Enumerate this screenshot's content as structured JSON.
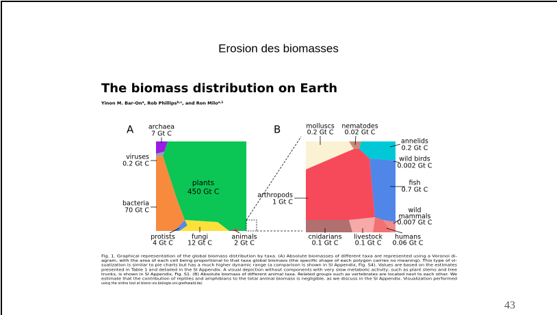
{
  "slide_title": "Erosion des biomasses",
  "paper": {
    "title": "The biomass distribution on Earth",
    "authors": [
      {
        "text": "Yinon M. Bar-On",
        "sup": "a"
      },
      {
        "text": ", Rob Phillips",
        "sup": "b,c"
      },
      {
        "text": ", and Ron Milo",
        "sup": "a,1"
      }
    ]
  },
  "figure": {
    "panel_a": {
      "label": "A",
      "cells": [
        {
          "name": "archaea",
          "value": "7 Gt C"
        },
        {
          "name": "viruses",
          "value": "0.2 Gt C"
        },
        {
          "name": "plants",
          "value": "450 Gt C"
        },
        {
          "name": "bacteria",
          "value": "70 Gt C"
        },
        {
          "name": "protists",
          "value": "4 Gt C"
        },
        {
          "name": "fungi",
          "value": "12 Gt C"
        },
        {
          "name": "animals",
          "value": "2 Gt C"
        }
      ]
    },
    "panel_b": {
      "label": "B",
      "cells": [
        {
          "name": "molluscs",
          "value": "0.2 Gt C"
        },
        {
          "name": "nematodes",
          "value": "0.02 Gt C"
        },
        {
          "name": "annelids",
          "value": "0.2 Gt C"
        },
        {
          "name": "wild birds",
          "value": "0.002 Gt C"
        },
        {
          "name": "fish",
          "value": "0.7 Gt C"
        },
        {
          "name": [
            "wild",
            "mammals"
          ],
          "value": "0.007 Gt C"
        },
        {
          "name": "arthropods",
          "value": "1 Gt C"
        },
        {
          "name": "cnidarians",
          "value": "0.1 Gt C"
        },
        {
          "name": "livestock",
          "value": "0.1 Gt C"
        },
        {
          "name": "humans",
          "value": "0.06 Gt C"
        }
      ]
    },
    "caption": [
      "Fig. 1.   Graphical representation of the global biomass distribution by taxa. (A) Absolute biomasses of different taxa are represented using a Voronoi di-",
      "agram, with the area of each cell being proportional to that taxa global biomass (the specific shape of each polygon carries no meaning). This type of vi-",
      "sualization is similar to pie charts but has a much higher dynamic range (a comparison is shown in SI Appendix, Fig. S4). Values are based on the estimates",
      "presented in Table 1 and detailed in the SI Appendix. A visual depiction without components with very slow metabolic activity, such as plant stems and tree",
      "trunks, is shown in SI Appendix, Fig. S1. (B) Absolute biomass of different animal taxa. Related groups such as vertebrates are located next to each other. We",
      "estimate that the contribution of reptiles and amphibians to the total animal biomass is negligible, as we discuss in the SI Appendix. Visualization performed",
      "using the online tool at bionic-vis.biologie.uni-greifswald.de/."
    ]
  },
  "page_number": "43"
}
